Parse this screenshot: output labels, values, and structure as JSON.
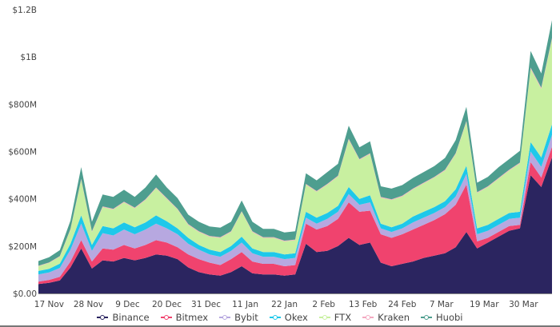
{
  "chart_data": {
    "type": "area",
    "stacked": true,
    "title": "",
    "xlabel": "",
    "ylabel": "",
    "ylim": [
      0,
      1200
    ],
    "y_unit": "$M",
    "y_ticks": [
      0,
      200,
      400,
      600,
      800,
      1000,
      1200
    ],
    "y_tick_labels": [
      "$0.00",
      "$200M",
      "$400M",
      "$600M",
      "$800M",
      "$1B",
      "$1.2B"
    ],
    "x_tick_labels": [
      "17 Nov",
      "28 Nov",
      "9 Dec",
      "20 Dec",
      "31 Dec",
      "11 Jan",
      "22 Jan",
      "2 Feb",
      "13 Feb",
      "24 Feb",
      "7 Mar",
      "19 Mar",
      "30 Mar"
    ],
    "x_tick_day_index": [
      3,
      14,
      25,
      36,
      47,
      58,
      69,
      80,
      91,
      102,
      113,
      125,
      136
    ],
    "x_day_index": [
      0,
      3,
      6,
      9,
      12,
      15,
      18,
      21,
      24,
      27,
      30,
      33,
      36,
      39,
      42,
      45,
      48,
      51,
      54,
      57,
      60,
      63,
      66,
      69,
      72,
      75,
      78,
      81,
      84,
      87,
      90,
      93,
      96,
      99,
      102,
      105,
      108,
      111,
      114,
      117,
      120,
      123,
      126,
      129,
      132,
      135,
      138,
      141,
      144
    ],
    "grid": false,
    "legend_position": "bottom",
    "series": [
      {
        "name": "Binance",
        "color": "#2b2560",
        "values": [
          40,
          45,
          55,
          110,
          190,
          105,
          140,
          135,
          150,
          140,
          150,
          165,
          160,
          145,
          110,
          90,
          80,
          75,
          90,
          115,
          85,
          80,
          80,
          75,
          80,
          210,
          175,
          180,
          200,
          235,
          205,
          215,
          130,
          115,
          125,
          135,
          150,
          160,
          170,
          195,
          260,
          190,
          215,
          240,
          265,
          275,
          500,
          450,
          575
        ]
      },
      {
        "name": "Bitmex",
        "color": "#f0436e",
        "values": [
          10,
          12,
          15,
          25,
          35,
          30,
          50,
          50,
          55,
          50,
          55,
          60,
          55,
          50,
          55,
          55,
          50,
          45,
          55,
          60,
          50,
          45,
          45,
          40,
          40,
          85,
          95,
          105,
          115,
          150,
          140,
          135,
          120,
          120,
          125,
          135,
          140,
          150,
          165,
          180,
          200,
          30,
          20,
          20,
          20,
          15,
          55,
          40,
          45
        ]
      },
      {
        "name": "Bybit",
        "color": "#b7a8e0",
        "values": [
          30,
          32,
          38,
          50,
          70,
          45,
          65,
          60,
          65,
          60,
          65,
          70,
          60,
          55,
          45,
          40,
          35,
          35,
          35,
          40,
          35,
          30,
          30,
          30,
          30,
          25,
          25,
          30,
          30,
          35,
          30,
          35,
          25,
          25,
          25,
          30,
          30,
          30,
          30,
          35,
          45,
          30,
          30,
          30,
          30,
          30,
          45,
          45,
          50
        ]
      },
      {
        "name": "Okex",
        "color": "#1ec8ea",
        "values": [
          15,
          15,
          18,
          25,
          35,
          25,
          30,
          30,
          30,
          30,
          30,
          35,
          30,
          25,
          25,
          20,
          20,
          20,
          20,
          25,
          20,
          20,
          20,
          20,
          20,
          25,
          25,
          25,
          25,
          30,
          25,
          30,
          20,
          20,
          20,
          25,
          25,
          25,
          25,
          30,
          35,
          25,
          25,
          25,
          25,
          25,
          40,
          40,
          45
        ]
      },
      {
        "name": "FTX",
        "color": "#c8f0a0",
        "values": [
          20,
          25,
          30,
          60,
          150,
          55,
          80,
          80,
          85,
          80,
          95,
          115,
          95,
          80,
          55,
          55,
          55,
          60,
          60,
          105,
          70,
          60,
          60,
          55,
          55,
          115,
          110,
          120,
          125,
          200,
          165,
          175,
          110,
          115,
          115,
          115,
          120,
          125,
          130,
          150,
          185,
          150,
          160,
          170,
          180,
          205,
          310,
          290,
          360
        ]
      },
      {
        "name": "Kraken",
        "color": "#f4a9c1",
        "values": [
          2,
          2,
          2,
          3,
          4,
          3,
          3,
          3,
          3,
          3,
          3,
          3,
          3,
          3,
          3,
          3,
          3,
          3,
          3,
          3,
          3,
          3,
          3,
          3,
          3,
          3,
          3,
          3,
          3,
          4,
          3,
          3,
          3,
          3,
          3,
          3,
          3,
          3,
          3,
          3,
          4,
          3,
          3,
          3,
          3,
          3,
          5,
          5,
          5
        ]
      },
      {
        "name": "Huobi",
        "color": "#4e9e8f",
        "values": [
          20,
          22,
          25,
          35,
          50,
          40,
          50,
          50,
          50,
          45,
          50,
          55,
          45,
          45,
          40,
          40,
          40,
          40,
          40,
          45,
          40,
          35,
          35,
          35,
          35,
          45,
          45,
          50,
          50,
          55,
          50,
          50,
          45,
          45,
          45,
          45,
          45,
          45,
          50,
          55,
          60,
          40,
          40,
          45,
          45,
          50,
          70,
          60,
          75
        ]
      }
    ]
  }
}
